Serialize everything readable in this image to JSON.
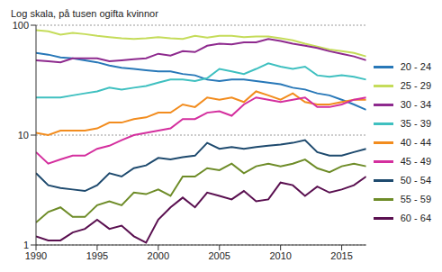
{
  "chart_data": {
    "type": "line",
    "y_label": "Log skala, på tusen ogifta kvinnor",
    "log": "y",
    "grid": true,
    "legend": "right",
    "x": [
      1990,
      1991,
      1992,
      1993,
      1994,
      1995,
      1996,
      1997,
      1998,
      1999,
      2000,
      2001,
      2002,
      2003,
      2004,
      2005,
      2006,
      2007,
      2008,
      2009,
      2010,
      2011,
      2012,
      2013,
      2014,
      2015,
      2016,
      2017
    ],
    "xlim": [
      1990,
      2017
    ],
    "xticks": [
      1990,
      1995,
      2000,
      2005,
      2010,
      2015
    ],
    "ylim": [
      1,
      100
    ],
    "yticks": [
      1,
      10,
      100
    ],
    "series": [
      {
        "name": "20 - 24",
        "color": "#2878b8",
        "values": [
          56,
          54,
          51,
          50,
          48,
          46,
          43,
          41,
          40,
          39,
          38,
          38,
          36,
          35,
          32,
          31,
          32,
          32,
          31,
          30,
          29,
          27,
          26,
          24,
          23,
          21,
          19,
          17
        ]
      },
      {
        "name": "25 - 29",
        "color": "#c5dc5a",
        "values": [
          90,
          88,
          82,
          85,
          83,
          80,
          78,
          76,
          75,
          76,
          78,
          76,
          75,
          80,
          77,
          80,
          80,
          78,
          79,
          79,
          76,
          73,
          68,
          64,
          60,
          58,
          56,
          52
        ]
      },
      {
        "name": "30 - 34",
        "color": "#8e2a8e",
        "values": [
          48,
          47,
          46,
          50,
          50,
          50,
          47,
          48,
          49,
          50,
          55,
          53,
          58,
          57,
          65,
          68,
          67,
          70,
          70,
          75,
          72,
          68,
          65,
          62,
          58,
          55,
          52,
          48
        ]
      },
      {
        "name": "35 - 39",
        "color": "#3fc0c0",
        "values": [
          22,
          22,
          22,
          23,
          24,
          25,
          27,
          26,
          27,
          28,
          30,
          32,
          32,
          31,
          33,
          40,
          38,
          36,
          40,
          45,
          42,
          40,
          42,
          35,
          34,
          35,
          34,
          32
        ]
      },
      {
        "name": "40 - 44",
        "color": "#f28c1e",
        "values": [
          10.5,
          10,
          11,
          11,
          11,
          11.5,
          13,
          13,
          14,
          14.5,
          16,
          16,
          19,
          18,
          22,
          21,
          22,
          20,
          25,
          23,
          21,
          24,
          20,
          19,
          19,
          20,
          21,
          21
        ]
      },
      {
        "name": "45 - 49",
        "color": "#d42f9e",
        "values": [
          7,
          5.5,
          6,
          6.5,
          6.5,
          7.5,
          8,
          9,
          10,
          10.5,
          11,
          11.5,
          14,
          14,
          16,
          16.5,
          15,
          19,
          22,
          21,
          20,
          21,
          22,
          18,
          18,
          19,
          21,
          22
        ]
      },
      {
        "name": "50 - 54",
        "color": "#1e4a6e",
        "values": [
          4.5,
          3.5,
          3.3,
          3.2,
          3.1,
          3.5,
          4.5,
          4.2,
          5,
          5.3,
          6.2,
          6,
          6.3,
          6.5,
          8.5,
          7.5,
          7.8,
          7.5,
          7.8,
          8,
          8.2,
          8.5,
          9,
          7,
          6.5,
          6.5,
          7,
          7.5
        ]
      },
      {
        "name": "55 - 59",
        "color": "#6e8c28",
        "values": [
          1.6,
          2,
          2.2,
          1.8,
          1.8,
          2.3,
          2.5,
          2.3,
          3,
          2.9,
          3.2,
          2.8,
          4.2,
          4.2,
          5,
          4.8,
          5.5,
          4.5,
          5.2,
          5.5,
          5.2,
          5.5,
          6,
          5,
          4.6,
          5.2,
          5.5,
          5.2
        ]
      },
      {
        "name": "60 - 64",
        "color": "#5a1050",
        "values": [
          1.2,
          1.1,
          1.1,
          1.3,
          1.4,
          1.7,
          1.4,
          1.5,
          1.2,
          1.05,
          1.7,
          2.2,
          2.7,
          2.2,
          3,
          2.8,
          2.6,
          3.1,
          2.5,
          2.6,
          3.7,
          3.5,
          2.8,
          3.4,
          3,
          3.2,
          3.5,
          4.2
        ]
      }
    ]
  }
}
